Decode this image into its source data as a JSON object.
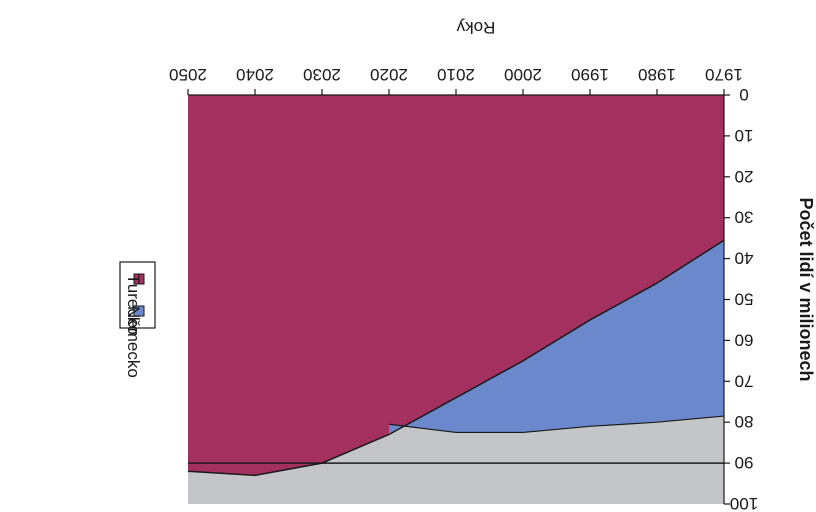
{
  "chart_data": {
    "type": "area",
    "orientation": "rotated 180 degrees",
    "xlabel": "Roky",
    "ylabel": "Počet lidí v milionech",
    "x": [
      1970,
      1980,
      1990,
      2000,
      2010,
      2020,
      2030,
      2040,
      2050
    ],
    "x_ticks": [
      "1970",
      "1980",
      "1990",
      "2000",
      "2010",
      "2020",
      "2030",
      "2040",
      "2050"
    ],
    "y_ticks": [
      "0",
      "10",
      "20",
      "30",
      "40",
      "50",
      "60",
      "70",
      "80",
      "90",
      "100"
    ],
    "ylim": [
      0,
      100
    ],
    "reference_line": 90,
    "series": [
      {
        "name": "Německo",
        "values": [
          78.5,
          80,
          81,
          82.5,
          82.5,
          80.5,
          null,
          null,
          null
        ]
      },
      {
        "name": "Turecko",
        "values": [
          35.5,
          46,
          55,
          65,
          74,
          83,
          90,
          93,
          92
        ]
      }
    ],
    "grey_band_top": [
      77.5,
      78,
      79,
      80.5,
      80.5,
      80.5,
      85,
      88,
      86.5
    ],
    "legend": {
      "position": "left",
      "items": [
        "Německo",
        "Turecko"
      ]
    },
    "colors": {
      "Turecko": "#a3305f",
      "Německo": "#6b88cc",
      "grey": "#c4c5c9",
      "line": "#1a1a1a"
    }
  }
}
